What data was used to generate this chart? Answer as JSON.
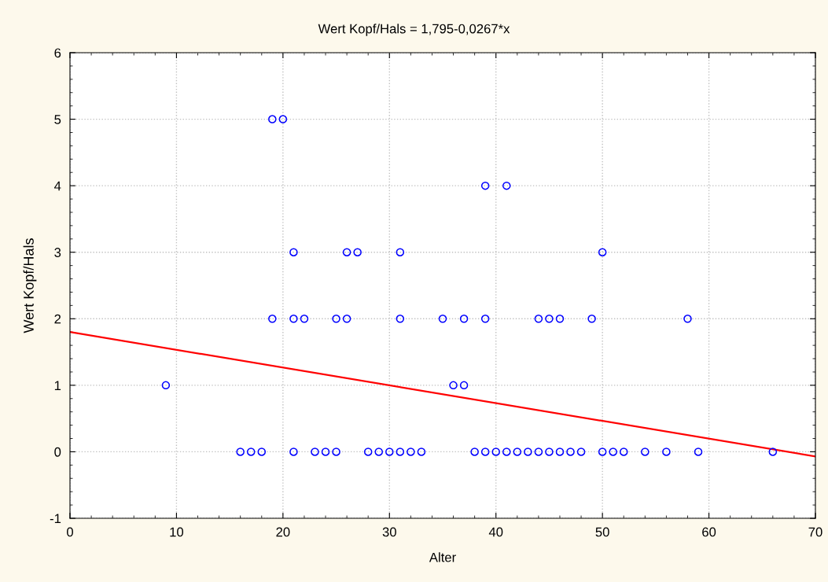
{
  "chart_data": {
    "type": "scatter",
    "title": "Wert Kopf/Hals = 1,795-0,0267*x",
    "xlabel": "Alter",
    "ylabel": "Wert Kopf/Hals",
    "xlim": [
      0,
      70
    ],
    "xticks": [
      0,
      10,
      20,
      30,
      40,
      50,
      60,
      70
    ],
    "ylim": [
      -1,
      6
    ],
    "yticks": [
      -1,
      0,
      1,
      2,
      3,
      4,
      5,
      6
    ],
    "grid": true,
    "series": [
      {
        "color": "#0000ff",
        "marker": "circle",
        "x": [
          19,
          20,
          39,
          41,
          21,
          26,
          27,
          31,
          50,
          19,
          21,
          22,
          25,
          26,
          31,
          35,
          37,
          39,
          44,
          45,
          46,
          49,
          58,
          9,
          36,
          37,
          16,
          17,
          18,
          21,
          23,
          24,
          25,
          28,
          29,
          30,
          31,
          32,
          33,
          38,
          39,
          40,
          41,
          42,
          43,
          44,
          45,
          46,
          47,
          48,
          50,
          51,
          52,
          54,
          56,
          59,
          66
        ],
        "values": [
          5,
          5,
          4,
          4,
          3,
          3,
          3,
          3,
          3,
          2,
          2,
          2,
          2,
          2,
          2,
          2,
          2,
          2,
          2,
          2,
          2,
          2,
          2,
          1,
          1,
          1,
          0,
          0,
          0,
          0,
          0,
          0,
          0,
          0,
          0,
          0,
          0,
          0,
          0,
          0,
          0,
          0,
          0,
          0,
          0,
          0,
          0,
          0,
          0,
          0,
          0,
          0,
          0,
          0,
          0,
          0,
          0
        ]
      },
      {
        "type": "line",
        "color": "#ff0000",
        "x": [
          0,
          70
        ],
        "values": [
          1.8,
          -0.07
        ]
      }
    ]
  }
}
